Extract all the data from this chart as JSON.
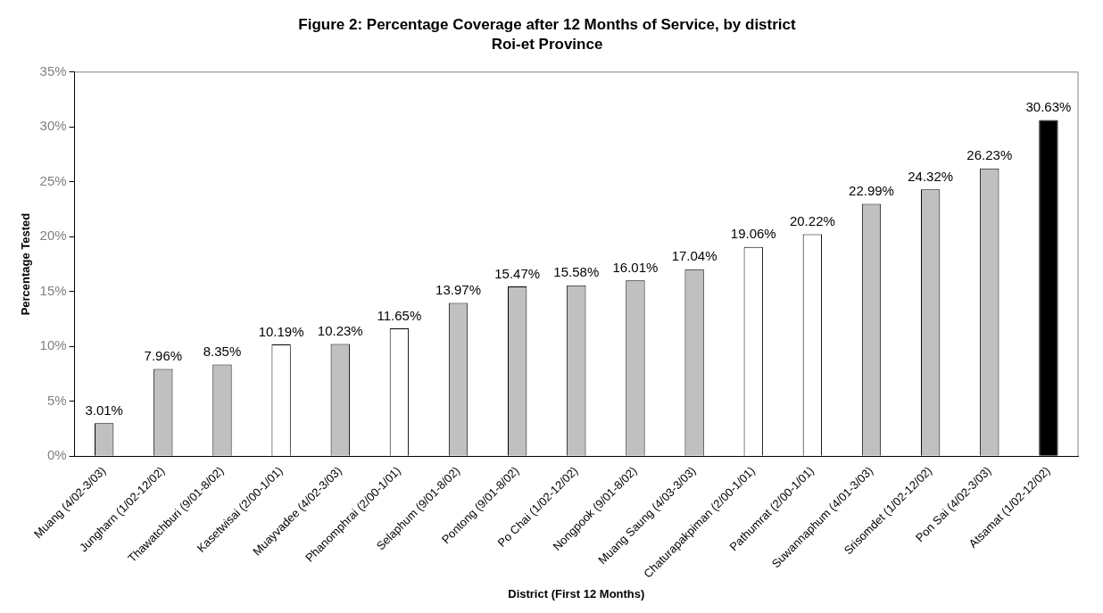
{
  "chart_data": {
    "type": "bar",
    "title": "Figure 2: Percentage Coverage after 12 Months of Service, by district",
    "subtitle": "Roi-et Province",
    "xlabel": "District (First 12 Months)",
    "ylabel": "Percentage Tested",
    "categories": [
      "Muang (4/02-3/03)",
      "Jungharn (1/02-12/02)",
      "Thawatchburi (9/01-8/02)",
      "Kasetwisai (2/00-1/01)",
      "Muayvadee (4/02-3/03)",
      "Phanomphrai (2/00-1/01)",
      "Selaphum (9/01-8/02)",
      "Pontong (9/01-8/02)",
      "Po Chai (1/02-12/02)",
      "Nongpook (9/01-8/02)",
      "Muang Saung (4/03-3/03)",
      "Chaturapakpiman (2/00-1/01)",
      "Pathumrat (2/00-1/01)",
      "Suwannaphum (4/01-3/03)",
      "Srisomdet (1/02-12/02)",
      "Pon Sai (4/02-3/03)",
      "Atsamat (1/02-12/02)"
    ],
    "values": [
      3.01,
      7.96,
      8.35,
      10.19,
      10.23,
      11.65,
      13.97,
      15.47,
      15.58,
      16.01,
      17.04,
      19.06,
      20.22,
      22.99,
      24.32,
      26.23,
      30.63
    ],
    "value_labels": [
      "3.01%",
      "7.96%",
      "8.35%",
      "10.19%",
      "10.23%",
      "11.65%",
      "13.97%",
      "15.47%",
      "15.58%",
      "16.01%",
      "17.04%",
      "19.06%",
      "20.22%",
      "22.99%",
      "24.32%",
      "26.23%",
      "30.63%"
    ],
    "colors": [
      "#c0c0c0",
      "#c0c0c0",
      "#c0c0c0",
      "#ffffff",
      "#c0c0c0",
      "#ffffff",
      "#c0c0c0",
      "#c0c0c0",
      "#c0c0c0",
      "#c0c0c0",
      "#c0c0c0",
      "#ffffff",
      "#ffffff",
      "#c0c0c0",
      "#c0c0c0",
      "#c0c0c0",
      "#000000"
    ],
    "ylim": [
      0,
      35
    ],
    "yticks": [
      {
        "value": 0,
        "label": "0%"
      },
      {
        "value": 5,
        "label": "5%"
      },
      {
        "value": 10,
        "label": "10%"
      },
      {
        "value": 15,
        "label": "15%"
      },
      {
        "value": 20,
        "label": "20%"
      },
      {
        "value": 25,
        "label": "25%"
      },
      {
        "value": 30,
        "label": "30%"
      },
      {
        "value": 35,
        "label": "35%"
      }
    ],
    "grid": false,
    "legend": false
  }
}
